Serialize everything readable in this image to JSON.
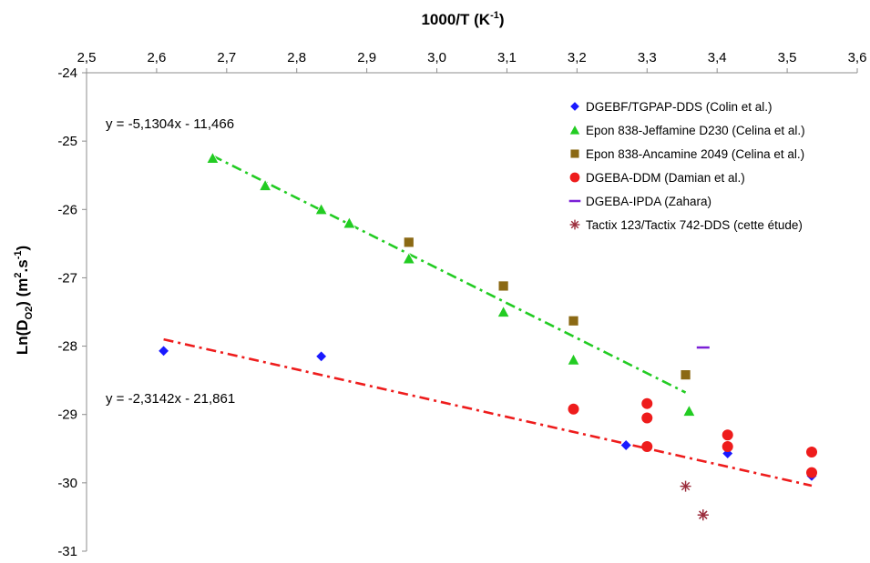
{
  "chart_data": {
    "type": "scatter",
    "x_axis": {
      "label_main": "1000/T  (K",
      "label_sup": "-1",
      "label_end": ")",
      "position": "top",
      "range": [
        2.5,
        3.6
      ],
      "ticks": [
        "2,5",
        "2,6",
        "2,7",
        "2,8",
        "2,9",
        "3,0",
        "3,1",
        "3,2",
        "3,3",
        "3,4",
        "3,5",
        "3,6"
      ]
    },
    "y_axis": {
      "label_parts": [
        "Ln(D",
        "O2",
        ")  (m",
        "2",
        ".s",
        "-1",
        ")"
      ],
      "range": [
        -31,
        -24
      ],
      "ticks": [
        "-24",
        "-25",
        "-26",
        "-27",
        "-28",
        "-29",
        "-30",
        "-31"
      ]
    },
    "grid": false,
    "legend_position": "top-right",
    "series": [
      {
        "name": "DGEBF/TGPAP-DDS   (Colin et al.)",
        "marker": "diamond",
        "color": "#1a1aff",
        "points": [
          [
            2.61,
            -28.07
          ],
          [
            2.835,
            -28.15
          ],
          [
            3.27,
            -29.45
          ],
          [
            3.415,
            -29.57
          ],
          [
            3.535,
            -29.9
          ]
        ]
      },
      {
        "name": "Epon 838-Jeffamine D230  (Celina et al.)",
        "marker": "triangle",
        "color": "#22cc22",
        "points": [
          [
            2.68,
            -25.25
          ],
          [
            2.755,
            -25.65
          ],
          [
            2.835,
            -26.0
          ],
          [
            2.875,
            -26.2
          ],
          [
            2.96,
            -26.72
          ],
          [
            3.095,
            -27.5
          ],
          [
            3.195,
            -28.2
          ],
          [
            3.36,
            -28.95
          ]
        ]
      },
      {
        "name": "Epon 838-Ancamine 2049  (Celina et al.)",
        "marker": "square",
        "color": "#8b6914",
        "points": [
          [
            2.96,
            -26.48
          ],
          [
            3.095,
            -27.12
          ],
          [
            3.195,
            -27.63
          ],
          [
            3.355,
            -28.42
          ]
        ]
      },
      {
        "name": "DGEBA-DDM (Damian et al.)",
        "marker": "circle",
        "color": "#ee1c1c",
        "points": [
          [
            3.195,
            -28.92
          ],
          [
            3.3,
            -28.84
          ],
          [
            3.3,
            -29.05
          ],
          [
            3.3,
            -29.47
          ],
          [
            3.415,
            -29.3
          ],
          [
            3.415,
            -29.47
          ],
          [
            3.535,
            -29.55
          ],
          [
            3.535,
            -29.85
          ]
        ]
      },
      {
        "name": "DGEBA-IPDA  (Zahara)",
        "marker": "dash",
        "color": "#7a1fd6",
        "points": [
          [
            3.38,
            -28.02
          ]
        ]
      },
      {
        "name": "Tactix 123/Tactix 742-DDS  (cette étude)",
        "marker": "asterisk",
        "color": "#9b2d3c",
        "points": [
          [
            3.355,
            -30.05
          ],
          [
            3.38,
            -30.47
          ],
          [
            3.38,
            -30.47
          ]
        ]
      }
    ],
    "trendlines": [
      {
        "equation": "y = -5,1304x - 11,466",
        "slope": -5.1304,
        "intercept": -11.466,
        "x_range": [
          2.68,
          3.355
        ],
        "color": "#22cc22"
      },
      {
        "equation": "y = -2,3142x - 21,861",
        "slope": -2.3142,
        "intercept": -21.861,
        "x_range": [
          2.61,
          3.535
        ],
        "color": "#ee1c1c"
      }
    ]
  }
}
